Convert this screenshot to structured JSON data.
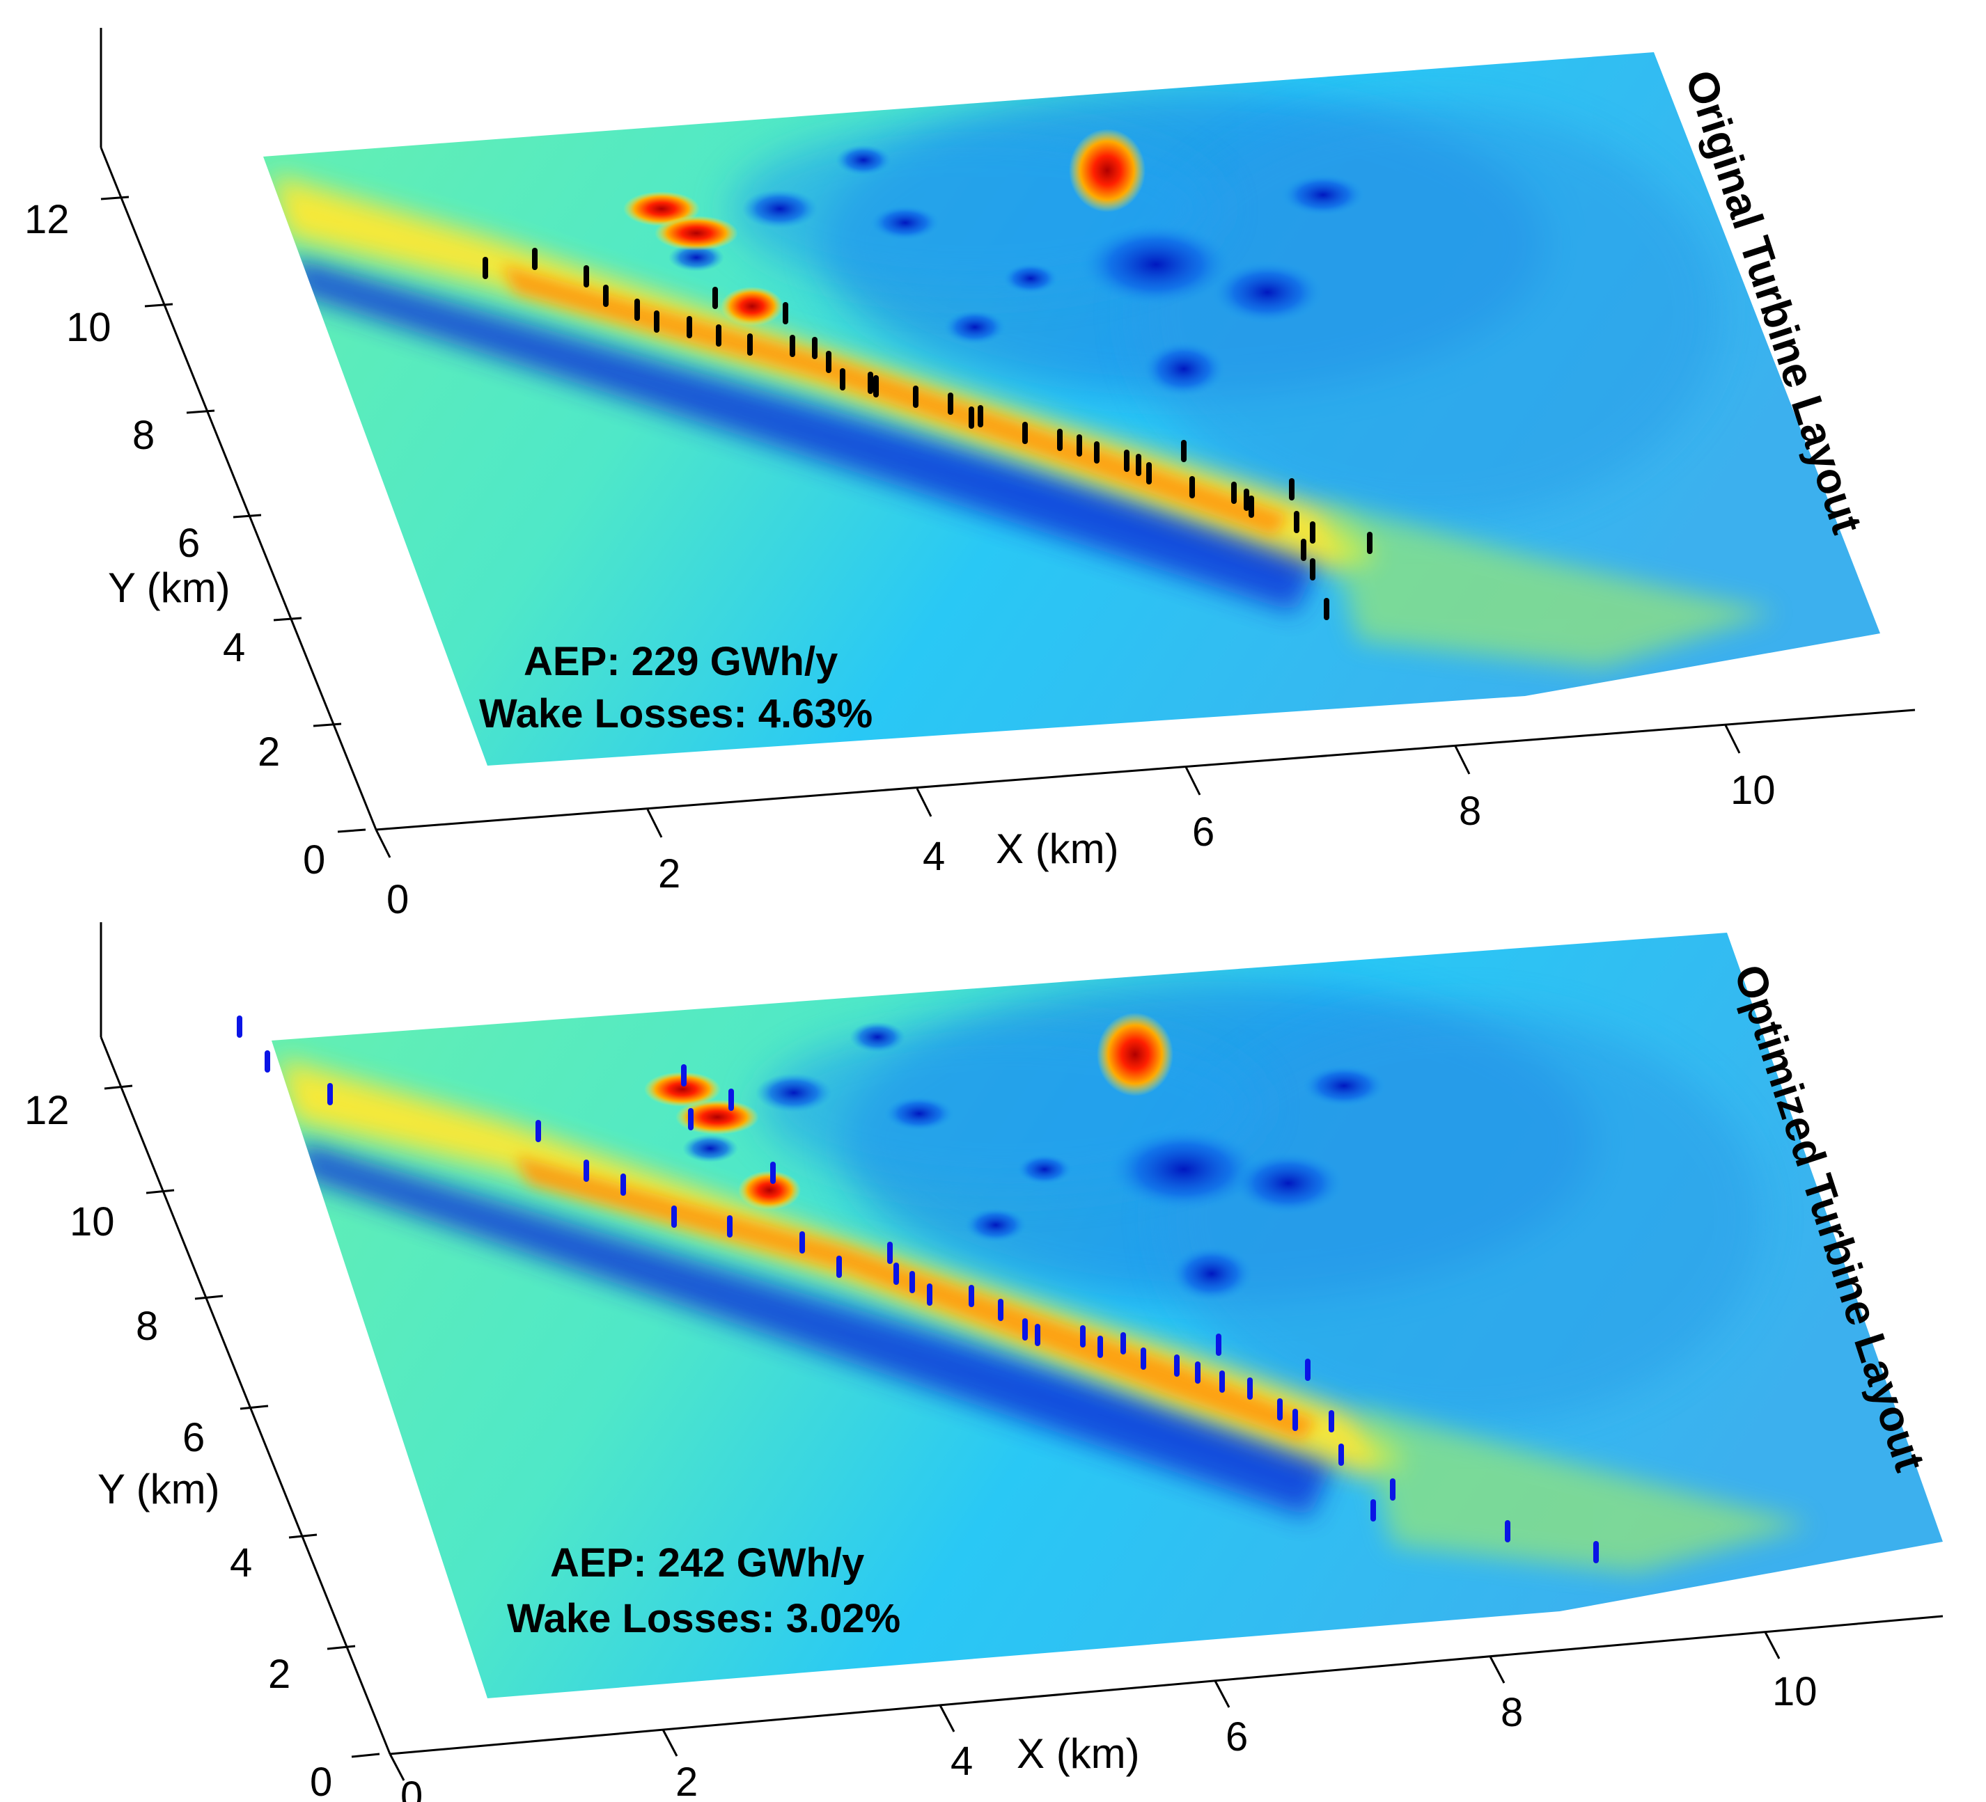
{
  "chart_data": [
    {
      "type": "surface",
      "title": "Original Turbine Layout",
      "xlabel": "X (km)",
      "ylabel": "Y (km)",
      "xticks": [
        "0",
        "2",
        "4",
        "6",
        "8",
        "10"
      ],
      "yticks": [
        "0",
        "2",
        "4",
        "6",
        "8",
        "10",
        "12"
      ],
      "annotation": [
        "AEP: 229 GWh/y",
        "Wake Losses: 4.63%"
      ],
      "turbine_color": "#000000",
      "turbine_count": 40
    },
    {
      "type": "surface",
      "title": "Optimized Turbine Layout",
      "xlabel": "X (km)",
      "ylabel": "Y (km)",
      "xticks": [
        "0",
        "2",
        "4",
        "6",
        "8",
        "10"
      ],
      "yticks": [
        "0",
        "2",
        "4",
        "6",
        "8",
        "10",
        "12"
      ],
      "annotation": [
        "AEP: 242 GWh/y",
        "Wake Losses: 3.02%"
      ],
      "turbine_color": "#0a14e6",
      "turbine_count": 40
    }
  ],
  "colormap": "jet"
}
